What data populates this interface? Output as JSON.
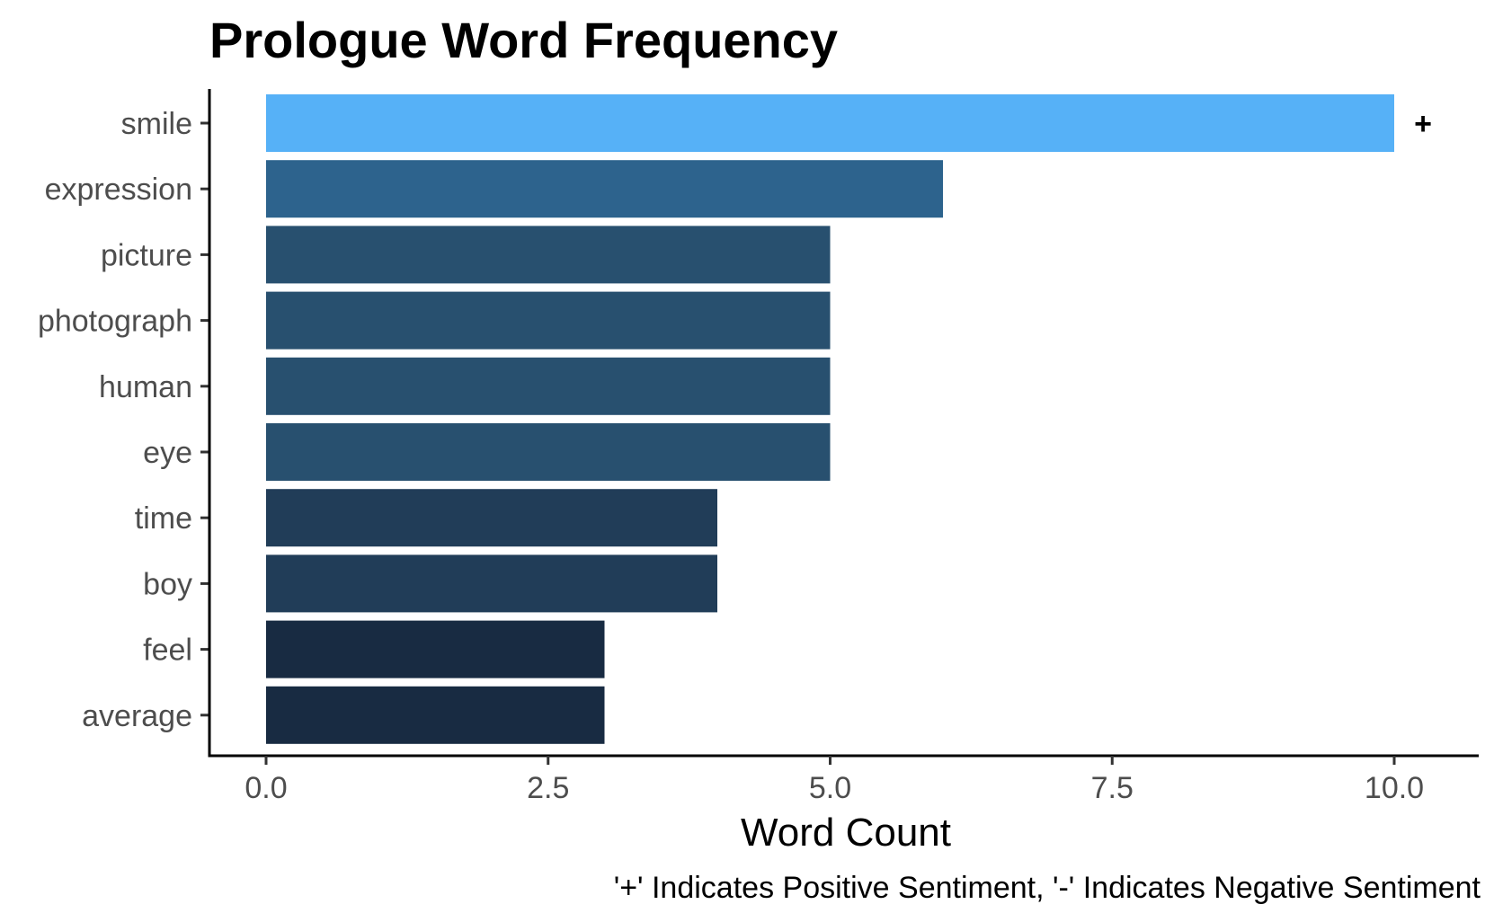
{
  "chart_data": {
    "type": "bar",
    "orientation": "horizontal",
    "title": "Prologue Word Frequency",
    "xlabel": "Word Count",
    "ylabel": "",
    "caption": "'+' Indicates Positive Sentiment, '-' Indicates Negative Sentiment",
    "categories": [
      "smile",
      "expression",
      "picture",
      "photograph",
      "human",
      "eye",
      "time",
      "boy",
      "feel",
      "average"
    ],
    "values": [
      10,
      6,
      5,
      5,
      5,
      5,
      4,
      4,
      3,
      3
    ],
    "sentiment_labels": [
      "+",
      "",
      "",
      "",
      "",
      "",
      "",
      "",
      "",
      ""
    ],
    "bar_colors": [
      "#56b1f7",
      "#2d638d",
      "#28506f",
      "#28506f",
      "#28506f",
      "#28506f",
      "#213d58",
      "#213d58",
      "#182b42",
      "#182b42"
    ],
    "xlim": [
      0,
      10.5
    ],
    "xticks": [
      0,
      2.5,
      5,
      7.5,
      10
    ],
    "xtick_labels": [
      "0.0",
      "2.5",
      "5.0",
      "7.5",
      "10.0"
    ],
    "grid": false,
    "legend": "none"
  }
}
